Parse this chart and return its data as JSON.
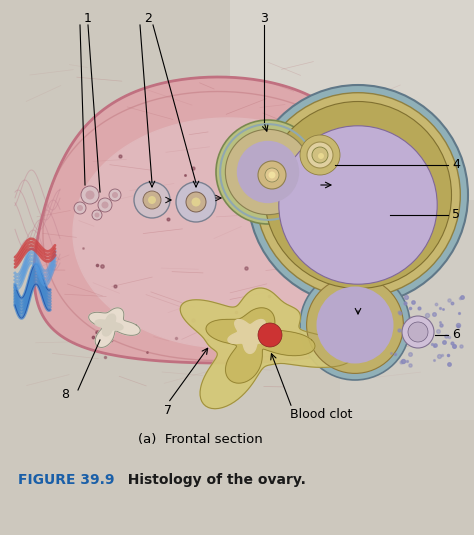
{
  "bg_color": "#cdc8be",
  "fig_width": 4.74,
  "fig_height": 5.35,
  "dpi": 100,
  "caption_label": "(a)  Frontal section",
  "caption_fontsize": 9.5,
  "figure_label": "FIGURE 39.9",
  "figure_label_color": "#1a5fa8",
  "figure_desc": "  Histology of the ovary.",
  "figure_desc_color": "#1a1a1a",
  "figure_fontsize": 10,
  "figure_fontweight": "bold",
  "label_fontsize": 9,
  "ovary_color": "#dea8aa",
  "ovary_edge_color": "#c47880",
  "cortex_color": "#d89098",
  "medulla_color": "#e0b0b4",
  "graafian_outer": "#b8c878",
  "graafian_granulosa": "#c8b890",
  "graafian_antrum": "#c0aed0",
  "graafian_theca_outer": "#8ab0b8",
  "secondary_antrum": "#b8a8c8",
  "corpus_luteum_color": "#d4c878",
  "corpus_albicans_color": "#e8e0d0",
  "blood_clot_color": "#cc3333",
  "blue_vessel_color": "#4488cc",
  "red_vessel_color": "#cc4444",
  "dot_color": "#8888bb"
}
